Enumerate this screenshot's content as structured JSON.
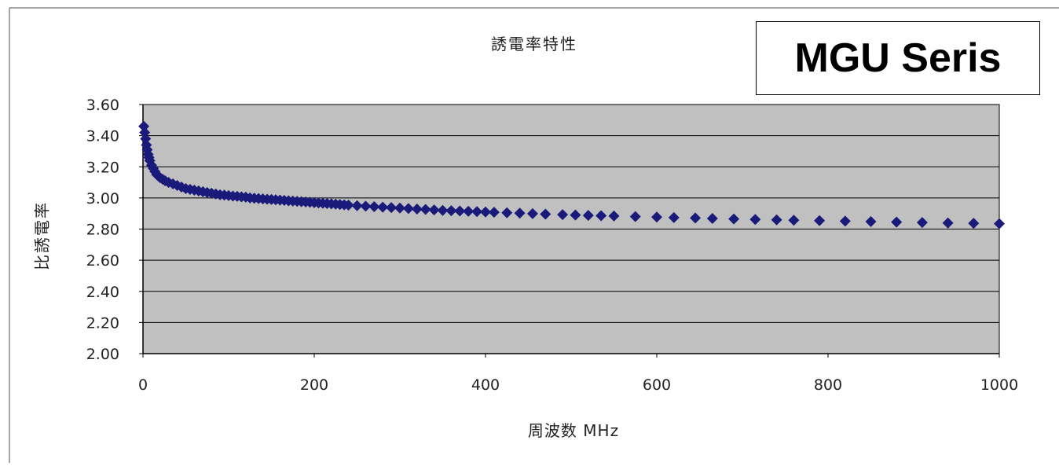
{
  "series_box": {
    "label": "MGU Seris"
  },
  "chart_data": {
    "type": "scatter",
    "title": "誘電率特性",
    "xlabel": "周波数 MHz",
    "ylabel": "比誘電率",
    "xlim": [
      0,
      1000
    ],
    "ylim": [
      2.0,
      3.6
    ],
    "x_ticks": [
      "0",
      "200",
      "400",
      "600",
      "800",
      "1000"
    ],
    "y_ticks": [
      "2.00",
      "2.20",
      "2.40",
      "2.60",
      "2.80",
      "3.00",
      "3.20",
      "3.40",
      "3.60"
    ],
    "grid": "horizontal",
    "plot_background": "#c0c0c0",
    "marker_color": "#1a1a7a",
    "marker": "diamond",
    "series": [
      {
        "x": [
          1,
          2,
          3,
          4,
          5,
          6,
          7,
          8,
          10,
          12,
          14,
          16,
          18,
          20,
          23,
          26,
          30,
          35,
          40,
          45,
          50,
          55,
          60,
          65,
          70,
          75,
          80,
          85,
          90,
          95,
          100,
          105,
          110,
          115,
          120,
          125,
          130,
          135,
          140,
          145,
          150,
          155,
          160,
          165,
          170,
          175,
          180,
          185,
          190,
          195,
          200,
          205,
          210,
          215,
          220,
          225,
          230,
          235,
          240,
          250,
          260,
          270,
          280,
          290,
          300,
          310,
          320,
          330,
          340,
          350,
          360,
          370,
          380,
          390,
          400,
          410,
          425,
          440,
          455,
          470,
          490,
          505,
          520,
          535,
          550,
          575,
          600,
          620,
          645,
          665,
          690,
          715,
          740,
          760,
          790,
          820,
          850,
          880,
          910,
          940,
          970,
          1000
        ],
        "y": [
          3.46,
          3.42,
          3.38,
          3.34,
          3.31,
          3.28,
          3.26,
          3.24,
          3.21,
          3.19,
          3.17,
          3.15,
          3.14,
          3.13,
          3.12,
          3.11,
          3.1,
          3.09,
          3.08,
          3.07,
          3.06,
          3.055,
          3.05,
          3.045,
          3.04,
          3.035,
          3.03,
          3.025,
          3.02,
          3.018,
          3.015,
          3.012,
          3.01,
          3.007,
          3.005,
          3.0,
          2.998,
          2.996,
          2.994,
          2.992,
          2.99,
          2.988,
          2.986,
          2.984,
          2.982,
          2.98,
          2.978,
          2.976,
          2.974,
          2.972,
          2.97,
          2.968,
          2.966,
          2.964,
          2.962,
          2.96,
          2.958,
          2.956,
          2.954,
          2.95,
          2.947,
          2.944,
          2.941,
          2.938,
          2.935,
          2.932,
          2.929,
          2.926,
          2.923,
          2.92,
          2.918,
          2.916,
          2.914,
          2.912,
          2.91,
          2.908,
          2.905,
          2.902,
          2.899,
          2.896,
          2.893,
          2.89,
          2.888,
          2.886,
          2.884,
          2.88,
          2.877,
          2.874,
          2.871,
          2.868,
          2.865,
          2.862,
          2.859,
          2.857,
          2.854,
          2.851,
          2.848,
          2.845,
          2.842,
          2.839,
          2.837,
          2.835
        ]
      }
    ]
  }
}
